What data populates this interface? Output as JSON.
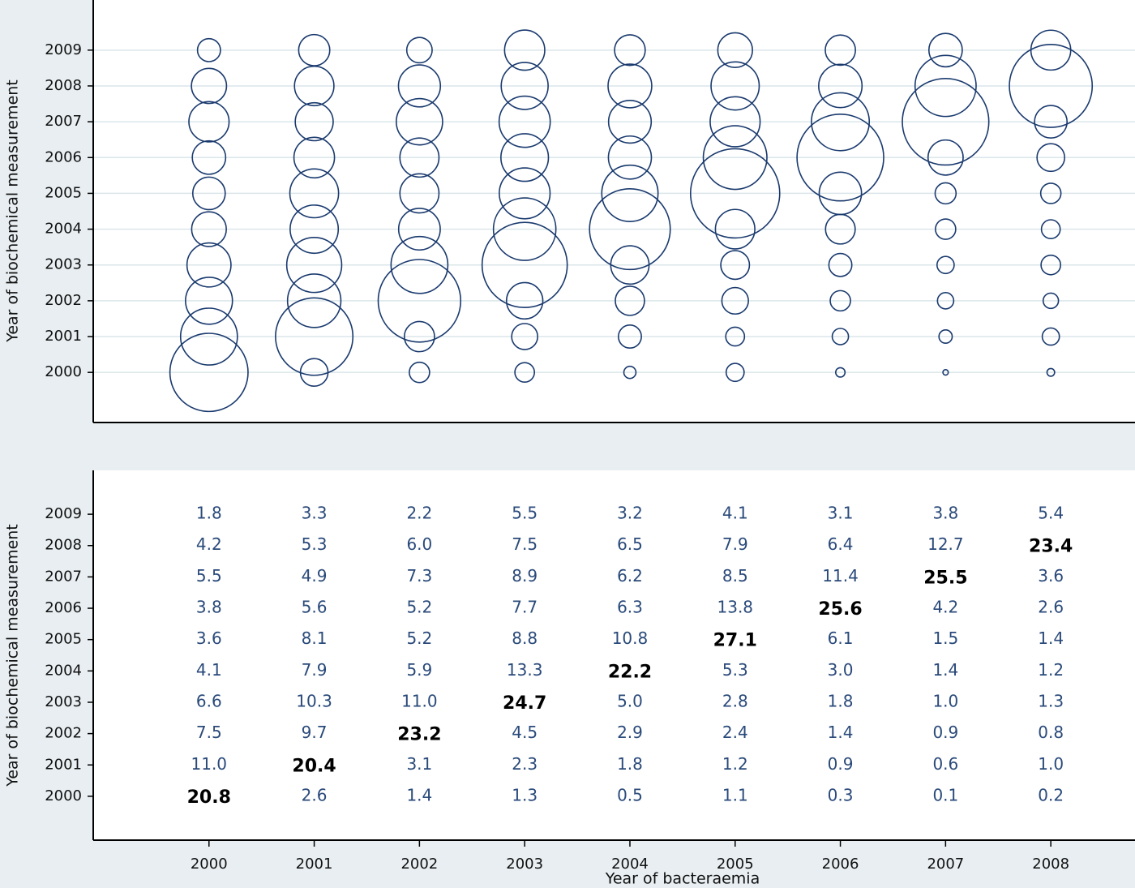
{
  "chart_data": {
    "type": "bubble",
    "x_label": "Year of bacteraemia",
    "y_label": "Year of biochemical measurement",
    "x": [
      2000,
      2001,
      2002,
      2003,
      2004,
      2005,
      2006,
      2007,
      2008
    ],
    "xlim": [
      1998.9,
      2008.8
    ],
    "xticks": [
      2000,
      2001,
      2002,
      2003,
      2004,
      2005,
      2006,
      2007,
      2008
    ],
    "ylim": [
      1998.6,
      2010.4
    ],
    "yticks": [
      2000,
      2001,
      2002,
      2003,
      2004,
      2005,
      2006,
      2007,
      2008,
      2009
    ],
    "grid": true,
    "color": "#1a3a6e",
    "values": [
      [
        20.8,
        11.0,
        7.5,
        6.6,
        4.1,
        3.6,
        3.8,
        5.5,
        4.2,
        1.8
      ],
      [
        2.6,
        20.4,
        9.7,
        10.3,
        7.9,
        8.1,
        5.6,
        4.9,
        5.3,
        3.3
      ],
      [
        1.4,
        3.1,
        23.2,
        11.0,
        5.9,
        5.2,
        5.2,
        7.3,
        6.0,
        2.2
      ],
      [
        1.3,
        2.3,
        4.5,
        24.7,
        13.3,
        8.8,
        7.7,
        8.9,
        7.5,
        5.5
      ],
      [
        0.5,
        1.8,
        2.9,
        5.0,
        22.2,
        10.8,
        6.3,
        6.2,
        6.5,
        3.2
      ],
      [
        1.1,
        1.2,
        2.4,
        2.8,
        5.3,
        27.1,
        13.8,
        8.5,
        7.9,
        4.1
      ],
      [
        0.3,
        0.9,
        1.4,
        1.8,
        3.0,
        6.1,
        25.6,
        11.4,
        6.4,
        3.1
      ],
      [
        0.1,
        0.6,
        0.9,
        1.0,
        1.4,
        1.5,
        4.2,
        25.5,
        12.7,
        3.8
      ],
      [
        0.2,
        1.0,
        0.8,
        1.3,
        1.2,
        1.4,
        2.6,
        3.6,
        23.4,
        5.4
      ]
    ],
    "value_labels": [
      [
        "20.8",
        "11.0",
        "7.5",
        "6.6",
        "4.1",
        "3.6",
        "3.8",
        "5.5",
        "4.2",
        "1.8"
      ],
      [
        "2.6",
        "20.4",
        "9.7",
        "10.3",
        "7.9",
        "8.1",
        "5.6",
        "4.9",
        "5.3",
        "3.3"
      ],
      [
        "1.4",
        "3.1",
        "23.2",
        "11.0",
        "5.9",
        "5.2",
        "5.2",
        "7.3",
        "6.0",
        "2.2"
      ],
      [
        "1.3",
        "2.3",
        "4.5",
        "24.7",
        "13.3",
        "8.8",
        "7.7",
        "8.9",
        "7.5",
        "5.5"
      ],
      [
        "0.5",
        "1.8",
        "2.9",
        "5.0",
        "22.2",
        "10.8",
        "6.3",
        "6.2",
        "6.5",
        "3.2"
      ],
      [
        "1.1",
        "1.2",
        "2.4",
        "2.8",
        "5.3",
        "27.1",
        "13.8",
        "8.5",
        "7.9",
        "4.1"
      ],
      [
        "0.3",
        "0.9",
        "1.4",
        "1.8",
        "3.0",
        "6.1",
        "25.6",
        "11.4",
        "6.4",
        "3.1"
      ],
      [
        "0.1",
        "0.6",
        "0.9",
        "1.0",
        "1.4",
        "1.5",
        "4.2",
        "25.5",
        "12.7",
        "3.8"
      ],
      [
        "0.2",
        "1.0",
        "0.8",
        "1.3",
        "1.2",
        "1.4",
        "2.6",
        "3.6",
        "23.4",
        "5.4"
      ]
    ]
  }
}
